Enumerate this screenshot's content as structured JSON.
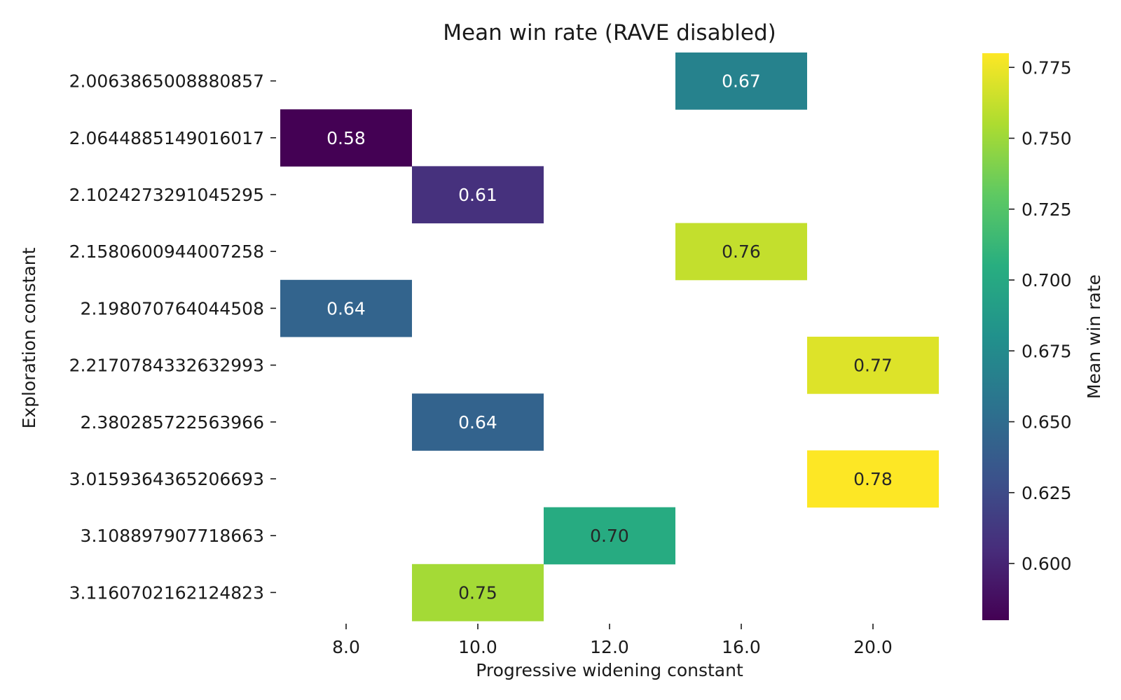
{
  "chart_data": {
    "type": "heatmap",
    "title": "Mean win rate (RAVE disabled)",
    "xlabel": "Progressive widening constant",
    "ylabel": "Exploration constant",
    "x_categories": [
      "8.0",
      "10.0",
      "12.0",
      "16.0",
      "20.0"
    ],
    "y_categories": [
      "2.0063865008880857",
      "2.0644885149016017",
      "2.1024273291045295",
      "2.1580600944007258",
      "2.198070764044508",
      "2.2170784332632993",
      "2.380285722563966",
      "3.0159364365206693",
      "3.108897907718663",
      "3.1160702162124823"
    ],
    "cells": [
      {
        "x": "16.0",
        "y": "2.0063865008880857",
        "value": 0.668,
        "label": "0.67"
      },
      {
        "x": "8.0",
        "y": "2.0644885149016017",
        "value": 0.58,
        "label": "0.58"
      },
      {
        "x": "10.0",
        "y": "2.1024273291045295",
        "value": 0.608,
        "label": "0.61"
      },
      {
        "x": "16.0",
        "y": "2.1580600944007258",
        "value": 0.762,
        "label": "0.76"
      },
      {
        "x": "8.0",
        "y": "2.198070764044508",
        "value": 0.644,
        "label": "0.64"
      },
      {
        "x": "20.0",
        "y": "2.2170784332632993",
        "value": 0.77,
        "label": "0.77"
      },
      {
        "x": "10.0",
        "y": "2.380285722563966",
        "value": 0.643,
        "label": "0.64"
      },
      {
        "x": "20.0",
        "y": "3.0159364365206693",
        "value": 0.78,
        "label": "0.78"
      },
      {
        "x": "12.0",
        "y": "3.108897907718663",
        "value": 0.702,
        "label": "0.70"
      },
      {
        "x": "10.0",
        "y": "3.1160702162124823",
        "value": 0.752,
        "label": "0.75"
      }
    ],
    "colorbar": {
      "label": "Mean win rate",
      "colormap": "viridis",
      "range": [
        0.58,
        0.78
      ],
      "ticks": [
        "0.600",
        "0.625",
        "0.650",
        "0.675",
        "0.700",
        "0.725",
        "0.750",
        "0.775"
      ]
    },
    "grid": false
  }
}
